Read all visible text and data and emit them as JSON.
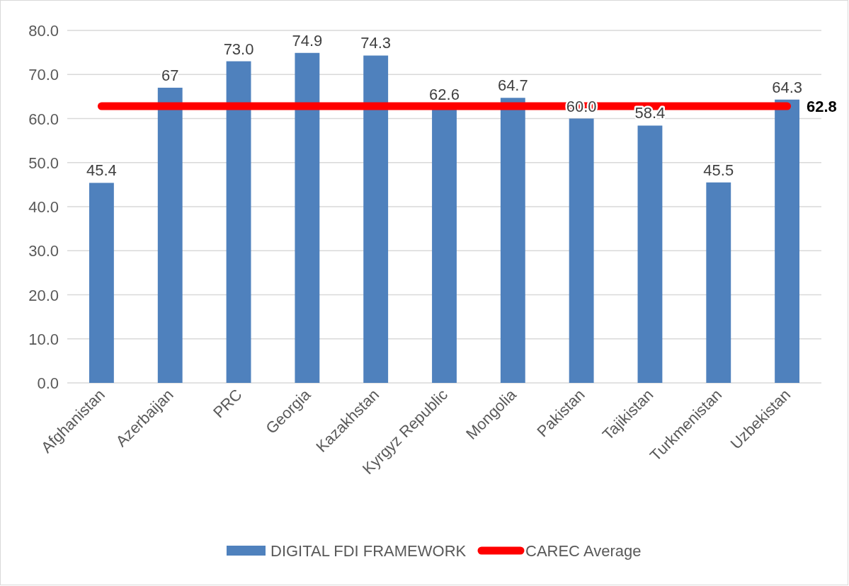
{
  "chart_data": {
    "type": "bar",
    "categories": [
      "Afghanistan",
      "Azerbaijan",
      "PRC",
      "Georgia",
      "Kazakhstan",
      "Kyrgyz Republic",
      "Mongolia",
      "Pakistan",
      "Tajikistan",
      "Turkmenistan",
      "Uzbekistan"
    ],
    "series": [
      {
        "name": "DIGITAL FDI FRAMEWORK",
        "color": "#4f81bd",
        "values": [
          45.4,
          67,
          73.0,
          74.9,
          74.3,
          62.6,
          64.7,
          60.0,
          58.4,
          45.5,
          64.3
        ],
        "value_labels": [
          "45.4",
          "67",
          "73.0",
          "74.9",
          "74.3",
          "62.6",
          "64.7",
          "60.0",
          "58.4",
          "45.5",
          "64.3"
        ]
      },
      {
        "name": "CAREC Average",
        "type": "line",
        "color": "#ff0000",
        "values": [
          62.8,
          62.8,
          62.8,
          62.8,
          62.8,
          62.8,
          62.8,
          62.8,
          62.8,
          62.8,
          62.8
        ],
        "value_labels": [
          null,
          null,
          null,
          null,
          null,
          null,
          null,
          null,
          null,
          null,
          "62.8"
        ]
      }
    ],
    "ylim": [
      0,
      80
    ],
    "yticks": [
      {
        "value": 0,
        "label": "0.0"
      },
      {
        "value": 10,
        "label": "10.0"
      },
      {
        "value": 20,
        "label": "20.0"
      },
      {
        "value": 30,
        "label": "30.0"
      },
      {
        "value": 40,
        "label": "40.0"
      },
      {
        "value": 50,
        "label": "50.0"
      },
      {
        "value": 60,
        "label": "60.0"
      },
      {
        "value": 70,
        "label": "70.0"
      },
      {
        "value": 80,
        "label": "80.0"
      }
    ],
    "grid": "y",
    "legend": "bottom"
  }
}
